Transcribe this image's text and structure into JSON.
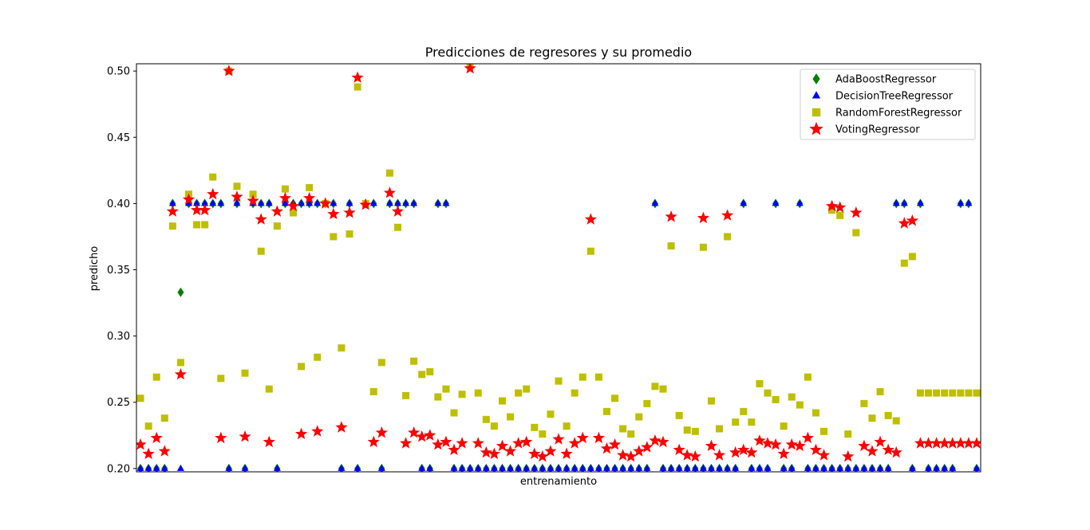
{
  "chart_data": {
    "type": "scatter",
    "title": "Predicciones de regresores y su promedio",
    "xlabel": "entrenamiento",
    "ylabel": "predicho",
    "xlim": [
      -0.5,
      104.5
    ],
    "ylim": [
      0.1975,
      0.5055
    ],
    "yticks": [
      0.2,
      0.25,
      0.3,
      0.35,
      0.4,
      0.45,
      0.5
    ],
    "ytick_labels": [
      "0.20",
      "0.25",
      "0.30",
      "0.35",
      "0.40",
      "0.45",
      "0.50"
    ],
    "xticks_visible": false,
    "grid": false,
    "legend_position": "top-right",
    "x": [
      0,
      1,
      2,
      3,
      4,
      5,
      6,
      7,
      8,
      9,
      10,
      11,
      12,
      13,
      14,
      15,
      16,
      17,
      18,
      19,
      20,
      21,
      22,
      23,
      24,
      25,
      26,
      27,
      28,
      29,
      30,
      31,
      32,
      33,
      34,
      35,
      36,
      37,
      38,
      39,
      40,
      41,
      42,
      43,
      44,
      45,
      46,
      47,
      48,
      49,
      50,
      51,
      52,
      53,
      54,
      55,
      56,
      57,
      58,
      59,
      60,
      61,
      62,
      63,
      64,
      65,
      66,
      67,
      68,
      69,
      70,
      71,
      72,
      73,
      74,
      75,
      76,
      77,
      78,
      79,
      80,
      81,
      82,
      83,
      84,
      85,
      86,
      87,
      88,
      89,
      90,
      91,
      92,
      93,
      94,
      95,
      96,
      97,
      98,
      99,
      100,
      101,
      102,
      103,
      104
    ],
    "series": [
      {
        "name": "AdaBoostRegressor",
        "color": "#008000",
        "marker": "diamond",
        "values": [
          0.2,
          0.2,
          0.2,
          0.2,
          0.4,
          0.333,
          0.4,
          0.4,
          0.4,
          0.4,
          0.4,
          0.2,
          0.4,
          0.2,
          0.4,
          0.4,
          0.4,
          0.2,
          0.4,
          0.4,
          0.4,
          0.4,
          0.4,
          0.4,
          0.4,
          0.2,
          0.4,
          0.2,
          0.4,
          0.4,
          0.2,
          0.4,
          0.4,
          0.4,
          0.4,
          0.2,
          0.2,
          0.4,
          0.4,
          0.2,
          0.2,
          0.2,
          0.2,
          0.2,
          0.2,
          0.2,
          0.2,
          0.2,
          0.2,
          0.2,
          0.2,
          0.2,
          0.2,
          0.2,
          0.2,
          0.2,
          0.2,
          0.2,
          0.2,
          0.2,
          0.2,
          0.2,
          0.2,
          0.2,
          0.4,
          0.2,
          0.2,
          0.2,
          0.2,
          0.2,
          0.2,
          0.2,
          0.2,
          0.2,
          0.2,
          0.4,
          0.2,
          0.2,
          0.2,
          0.4,
          0.2,
          0.2,
          0.4,
          0.2,
          0.2,
          0.2,
          0.2,
          0.2,
          0.2,
          0.2,
          0.2,
          0.2,
          0.2,
          0.2,
          0.4,
          0.4,
          0.2,
          0.4,
          0.2,
          0.2,
          0.2,
          0.2,
          0.4,
          0.4,
          0.2
        ]
      },
      {
        "name": "DecisionTreeRegressor",
        "color": "#0000ff",
        "marker": "triangle",
        "values": [
          0.2,
          0.2,
          0.2,
          0.2,
          0.4,
          0.2,
          0.4,
          0.4,
          0.4,
          0.4,
          0.4,
          0.2,
          0.4,
          0.2,
          0.4,
          0.4,
          0.4,
          0.2,
          0.4,
          0.4,
          0.4,
          0.4,
          0.4,
          0.4,
          0.4,
          0.2,
          0.4,
          0.2,
          0.4,
          0.4,
          0.2,
          0.4,
          0.4,
          0.4,
          0.4,
          0.2,
          0.2,
          0.4,
          0.4,
          0.2,
          0.2,
          0.2,
          0.2,
          0.2,
          0.2,
          0.2,
          0.2,
          0.2,
          0.2,
          0.2,
          0.2,
          0.2,
          0.2,
          0.2,
          0.2,
          0.2,
          0.2,
          0.2,
          0.2,
          0.2,
          0.2,
          0.2,
          0.2,
          0.2,
          0.4,
          0.2,
          0.2,
          0.2,
          0.2,
          0.2,
          0.2,
          0.2,
          0.2,
          0.2,
          0.2,
          0.4,
          0.2,
          0.2,
          0.2,
          0.4,
          0.2,
          0.2,
          0.4,
          0.2,
          0.2,
          0.2,
          0.2,
          0.2,
          0.2,
          0.2,
          0.2,
          0.2,
          0.2,
          0.2,
          0.4,
          0.4,
          0.2,
          0.4,
          0.2,
          0.2,
          0.2,
          0.2,
          0.4,
          0.4,
          0.2
        ]
      },
      {
        "name": "RandomForestRegressor",
        "color": "#bfbf00",
        "marker": "square",
        "values": [
          0.253,
          0.232,
          0.269,
          0.238,
          0.383,
          0.28,
          0.407,
          0.384,
          0.384,
          0.42,
          0.268,
          0.5,
          0.413,
          0.272,
          0.407,
          0.364,
          0.26,
          0.383,
          0.411,
          0.393,
          0.277,
          0.412,
          0.284,
          0.4,
          0.375,
          0.291,
          0.377,
          0.488,
          0.4,
          0.258,
          0.28,
          0.423,
          0.382,
          0.255,
          0.281,
          0.271,
          0.273,
          0.254,
          0.26,
          0.242,
          0.256,
          0.505,
          0.257,
          0.237,
          0.232,
          0.251,
          0.239,
          0.257,
          0.26,
          0.231,
          0.226,
          0.241,
          0.266,
          0.232,
          0.257,
          0.269,
          0.364,
          0.269,
          0.243,
          0.253,
          0.23,
          0.226,
          0.239,
          0.249,
          0.262,
          0.26,
          0.368,
          0.24,
          0.229,
          0.228,
          0.367,
          0.251,
          0.23,
          0.375,
          0.235,
          0.243,
          0.235,
          0.264,
          0.257,
          0.252,
          0.232,
          0.254,
          0.248,
          0.269,
          0.242,
          0.228,
          0.395,
          0.391,
          0.226,
          0.378,
          0.249,
          0.238,
          0.258,
          0.24,
          0.236,
          0.355,
          0.36,
          0.257,
          0.257,
          0.257,
          0.257,
          0.257,
          0.257,
          0.257,
          0.257
        ]
      },
      {
        "name": "VotingRegressor",
        "color": "#ff0000",
        "marker": "star",
        "values": [
          0.218,
          0.211,
          0.223,
          0.213,
          0.394,
          0.271,
          0.403,
          0.395,
          0.395,
          0.407,
          0.223,
          0.5,
          0.405,
          0.224,
          0.402,
          0.388,
          0.22,
          0.394,
          0.404,
          0.398,
          0.226,
          0.404,
          0.228,
          0.4,
          0.392,
          0.231,
          0.393,
          0.495,
          0.399,
          0.22,
          0.227,
          0.408,
          0.394,
          0.219,
          0.227,
          0.224,
          0.225,
          0.218,
          0.22,
          0.214,
          0.219,
          0.502,
          0.219,
          0.212,
          0.211,
          0.217,
          0.213,
          0.219,
          0.22,
          0.211,
          0.209,
          0.213,
          0.222,
          0.211,
          0.219,
          0.223,
          0.388,
          0.223,
          0.215,
          0.218,
          0.21,
          0.209,
          0.213,
          0.216,
          0.221,
          0.22,
          0.39,
          0.214,
          0.21,
          0.209,
          0.389,
          0.217,
          0.21,
          0.391,
          0.212,
          0.214,
          0.212,
          0.221,
          0.219,
          0.218,
          0.211,
          0.218,
          0.217,
          0.223,
          0.214,
          0.21,
          0.398,
          0.397,
          0.209,
          0.393,
          0.217,
          0.213,
          0.22,
          0.214,
          0.212,
          0.385,
          0.387,
          0.219,
          0.219,
          0.219,
          0.219,
          0.219,
          0.219,
          0.219,
          0.219
        ]
      }
    ]
  }
}
